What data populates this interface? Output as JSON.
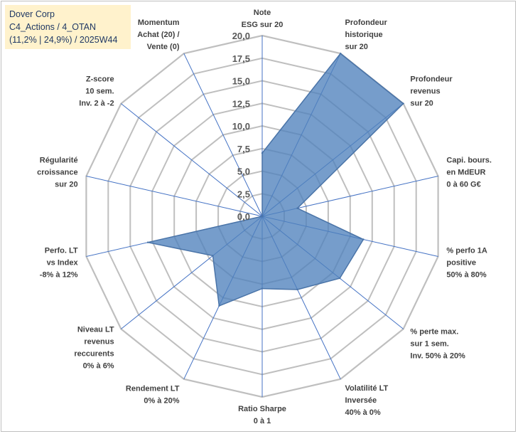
{
  "title_box": {
    "line1": "Dover Corp",
    "line2": "C4_Actions / 4_OTAN",
    "line3": "(11,2% | 24,9%) / 2025W44"
  },
  "chart_data": {
    "type": "radar",
    "title": "Dover Corp",
    "rmin": 0,
    "rmax": 20,
    "ticks": [
      "0,0",
      "2,5",
      "5,0",
      "7,5",
      "10,0",
      "12,5",
      "15,0",
      "17,5",
      "20,0"
    ],
    "grid": true,
    "axes": [
      {
        "label": [
          "Note",
          "ESG sur 20"
        ],
        "value": 7.0
      },
      {
        "label": [
          "Profondeur",
          "historique",
          "sur 20"
        ],
        "value": 20.0
      },
      {
        "label": [
          "Profondeur",
          "revenus",
          "sur 20"
        ],
        "value": 20.0
      },
      {
        "label": [
          "Capi. bours.",
          "en MdEUR",
          "0 à 60 G€"
        ],
        "value": 4.0
      },
      {
        "label": [
          "% perfo 1A",
          "positive",
          "50% à 80%"
        ],
        "value": 11.5
      },
      {
        "label": [
          "% perte max.",
          "sur 1 sem.",
          "Inv. 50% à 20%"
        ],
        "value": 11.0
      },
      {
        "label": [
          "Volatilité LT",
          "Inversée",
          "40% à 0%"
        ],
        "value": 9.0
      },
      {
        "label": [
          "Ratio Sharpe",
          "0 à 1"
        ],
        "value": 8.0
      },
      {
        "label": [
          "Rendement LT",
          "0% à 20%"
        ],
        "value": 11.0
      },
      {
        "label": [
          "Niveau LT",
          "revenus",
          "reccurents",
          "0% à 6%"
        ],
        "value": 7.0
      },
      {
        "label": [
          "Perfo. LT",
          "vs Index",
          "-8% à 12%"
        ],
        "value": 13.0
      },
      {
        "label": [
          "Régularité",
          "croissance",
          "sur 20"
        ],
        "value": 0.0
      },
      {
        "label": [
          "Z-score",
          "10 sem.",
          "Inv. 2 à -2"
        ],
        "value": 0.0
      },
      {
        "label": [
          "Momentum",
          "Achat (20) /",
          "Vente (0)"
        ],
        "value": 0.0
      }
    ],
    "colors": {
      "fill": "#4f81bd",
      "stroke": "#4a74a8",
      "grid": "#bfbfbf",
      "spoke": "#4472c4"
    }
  }
}
